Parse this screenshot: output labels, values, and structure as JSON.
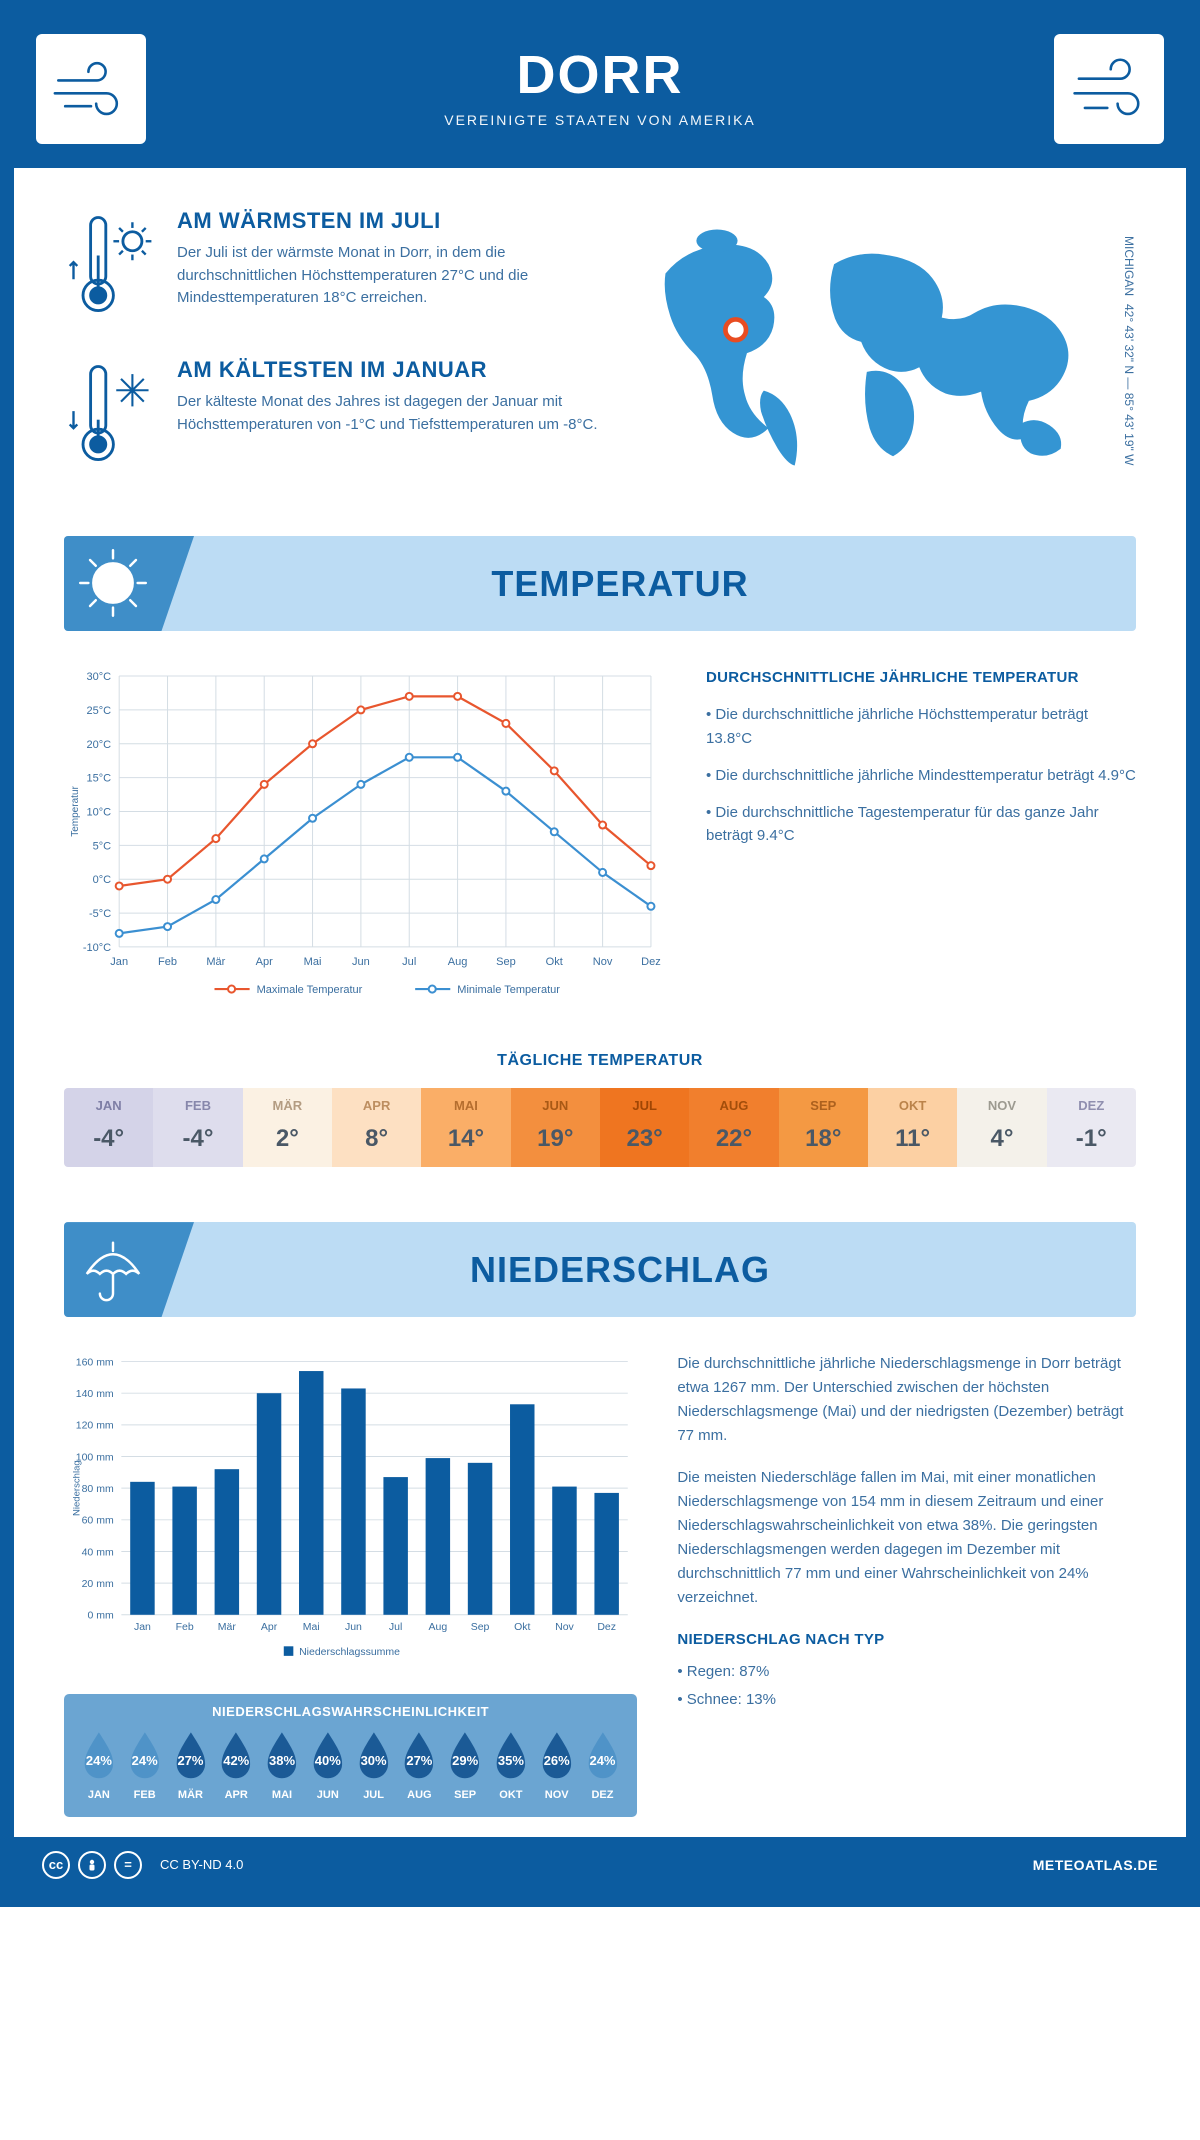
{
  "colors": {
    "brand": "#0c5ca0",
    "accent_light": "#bcdcf4",
    "accent_mid": "#3f8ec8",
    "text_body": "#3b6fa0",
    "series_max": "#e8562e",
    "series_min": "#3b8fd1",
    "grid": "#d4dde4",
    "marker": "#e84c21"
  },
  "header": {
    "title": "DORR",
    "subtitle": "VEREINIGTE STAATEN VON AMERIKA"
  },
  "intro": {
    "warm": {
      "title": "AM WÄRMSTEN IM JULI",
      "body": "Der Juli ist der wärmste Monat in Dorr, in dem die durchschnittlichen Höchsttemperaturen 27°C und die Mindesttemperaturen 18°C erreichen."
    },
    "cold": {
      "title": "AM KÄLTESTEN IM JANUAR",
      "body": "Der kälteste Monat des Jahres ist dagegen der Januar mit Höchsttemperaturen von -1°C und Tiefsttemperaturen um -8°C."
    },
    "coords": "42° 43' 32\" N — 85° 43' 19\" W",
    "region": "MICHIGAN"
  },
  "months_short": [
    "Jan",
    "Feb",
    "Mär",
    "Apr",
    "Mai",
    "Jun",
    "Jul",
    "Aug",
    "Sep",
    "Okt",
    "Nov",
    "Dez"
  ],
  "months_upper": [
    "JAN",
    "FEB",
    "MÄR",
    "APR",
    "MAI",
    "JUN",
    "JUL",
    "AUG",
    "SEP",
    "OKT",
    "NOV",
    "DEZ"
  ],
  "temperature": {
    "section_title": "TEMPERATUR",
    "chart": {
      "y_title": "Temperatur",
      "y_min": -10,
      "y_max": 30,
      "y_step": 5,
      "y_ticks": [
        "-10°C",
        "-5°C",
        "0°C",
        "5°C",
        "10°C",
        "15°C",
        "20°C",
        "25°C",
        "30°C"
      ],
      "max_series": [
        -1,
        0,
        6,
        14,
        20,
        25,
        27,
        27,
        23,
        16,
        8,
        2
      ],
      "min_series": [
        -8,
        -7,
        -3,
        3,
        9,
        14,
        18,
        18,
        13,
        7,
        1,
        -4
      ],
      "legend_max": "Maximale Temperatur",
      "legend_min": "Minimale Temperatur",
      "line_width": 2.2,
      "marker_radius": 3.5
    },
    "notes": {
      "title": "DURCHSCHNITTLICHE JÄHRLICHE TEMPERATUR",
      "b1": "• Die durchschnittliche jährliche Höchsttemperatur beträgt 13.8°C",
      "b2": "• Die durchschnittliche jährliche Mindesttemperatur beträgt 4.9°C",
      "b3": "• Die durchschnittliche Tagestemperatur für das ganze Jahr beträgt 9.4°C"
    },
    "daily": {
      "title": "TÄGLICHE TEMPERATUR",
      "values": [
        "-4°",
        "-4°",
        "2°",
        "8°",
        "14°",
        "19°",
        "23°",
        "22°",
        "18°",
        "11°",
        "4°",
        "-1°"
      ],
      "cell_colors": [
        "#d4d3e8",
        "#dedded",
        "#fbf1e3",
        "#fde0c2",
        "#faae67",
        "#f38f3e",
        "#ef7520",
        "#f17f2d",
        "#f49943",
        "#fcd0a3",
        "#f4f1ea",
        "#eae9f2"
      ],
      "cell_label_colors": [
        "#7e7ea5",
        "#8787ab",
        "#b39c82",
        "#bd8e60",
        "#b56e2f",
        "#a85915",
        "#a04604",
        "#a34e0b",
        "#ac611e",
        "#bb834a",
        "#9c9a90",
        "#8f8eaf"
      ]
    }
  },
  "precip": {
    "section_title": "NIEDERSCHLAG",
    "chart": {
      "y_title": "Niederschlag",
      "y_min": 0,
      "y_max": 160,
      "y_step": 20,
      "y_ticks": [
        "0 mm",
        "20 mm",
        "40 mm",
        "60 mm",
        "80 mm",
        "100 mm",
        "120 mm",
        "140 mm",
        "160 mm"
      ],
      "values": [
        84,
        81,
        92,
        140,
        154,
        143,
        87,
        99,
        96,
        133,
        81,
        77
      ],
      "legend": "Niederschlagssumme",
      "bar_width_ratio": 0.58
    },
    "text": {
      "p1": "Die durchschnittliche jährliche Niederschlagsmenge in Dorr beträgt etwa 1267 mm. Der Unterschied zwischen der höchsten Niederschlagsmenge (Mai) und der niedrigsten (Dezember) beträgt 77 mm.",
      "p2": "Die meisten Niederschläge fallen im Mai, mit einer monatlichen Niederschlagsmenge von 154 mm in diesem Zeitraum und einer Niederschlagswahrscheinlichkeit von etwa 38%. Die geringsten Niederschlagsmengen werden dagegen im Dezember mit durchschnittlich 77 mm und einer Wahrscheinlichkeit von 24% verzeichnet.",
      "type_title": "NIEDERSCHLAG NACH TYP",
      "type1": "• Regen: 87%",
      "type2": "• Schnee: 13%"
    },
    "prob": {
      "title": "NIEDERSCHLAGSWAHRSCHEINLICHKEIT",
      "values": [
        "24%",
        "24%",
        "27%",
        "42%",
        "38%",
        "40%",
        "30%",
        "27%",
        "29%",
        "35%",
        "26%",
        "24%"
      ],
      "drop_colors": [
        "#4f93c8",
        "#4f93c8",
        "#1b5a96",
        "#1b5a96",
        "#1b5a96",
        "#1b5a96",
        "#1b5a96",
        "#1b5a96",
        "#1b5a96",
        "#1b5a96",
        "#1b5a96",
        "#4f93c8"
      ]
    }
  },
  "footer": {
    "license": "CC BY-ND 4.0",
    "brand": "METEOATLAS.DE"
  }
}
